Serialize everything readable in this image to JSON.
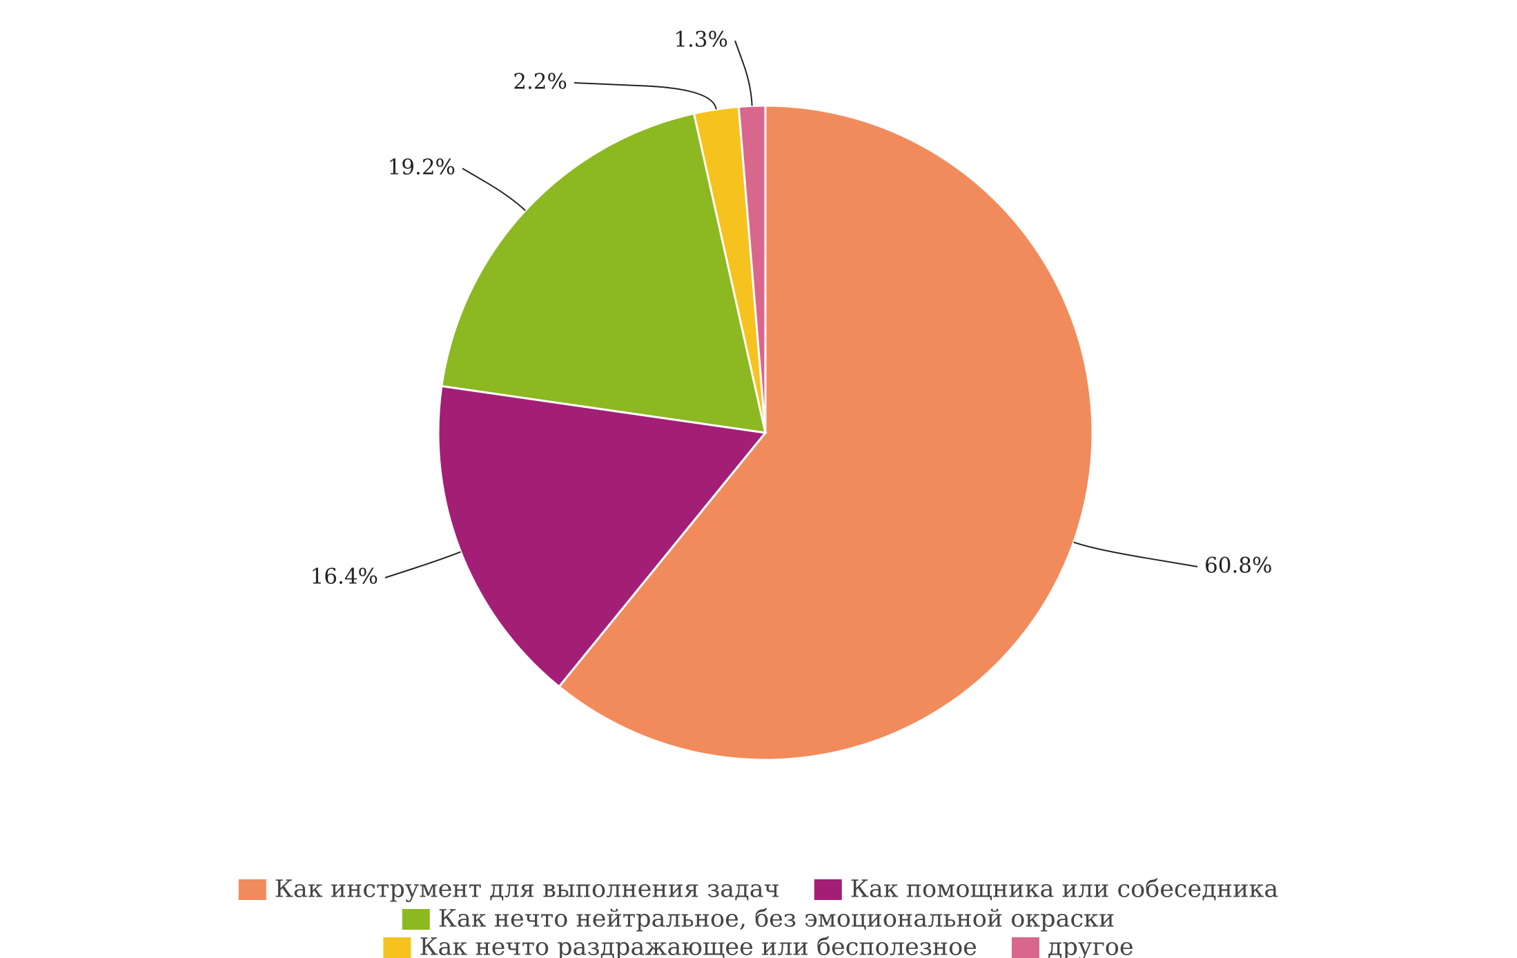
{
  "chart_data": {
    "type": "pie",
    "categories": [
      "Как инструмент для выполнения задач",
      "Как помощника или собеседника",
      "Как нечто нейтральное, без эмоциональной окраски",
      "Как нечто раздражающее или бесполезное",
      "другое"
    ],
    "values": [
      60.8,
      16.4,
      19.2,
      2.2,
      1.3
    ],
    "value_labels": [
      "60.8%",
      "16.4%",
      "19.2%",
      "2.2%",
      "1.3%"
    ],
    "colors": [
      "#f28b5c",
      "#a31f75",
      "#8cb822",
      "#f6c21d",
      "#d9668c"
    ],
    "legend": "bottom"
  }
}
